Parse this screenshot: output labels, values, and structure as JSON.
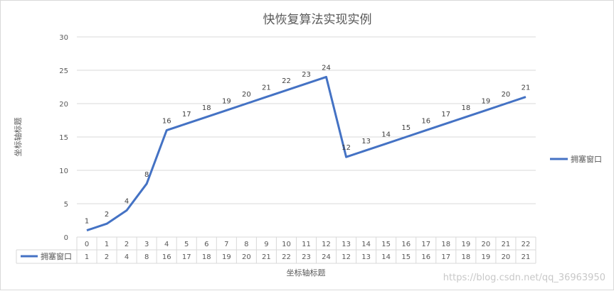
{
  "chart_data": {
    "type": "line",
    "title": "快恢复算法实现实例",
    "xlabel": "坐标轴标题",
    "ylabel": "坐标轴标题",
    "ylim": [
      0,
      30
    ],
    "yticks": [
      0,
      5,
      10,
      15,
      20,
      25,
      30
    ],
    "categories": [
      "0",
      "1",
      "2",
      "3",
      "4",
      "5",
      "6",
      "7",
      "8",
      "9",
      "10",
      "11",
      "12",
      "13",
      "14",
      "15",
      "16",
      "17",
      "18",
      "19",
      "20",
      "21",
      "22"
    ],
    "series": [
      {
        "name": "拥塞窗口",
        "values": [
          1,
          2,
          4,
          8,
          16,
          17,
          18,
          19,
          20,
          21,
          22,
          23,
          24,
          12,
          13,
          14,
          15,
          16,
          17,
          18,
          19,
          20,
          21
        ],
        "color": "#4472c4"
      }
    ],
    "legend_position": "right",
    "grid": true,
    "data_table": true
  },
  "watermark": "https://blog.csdn.net/qq_36963950"
}
